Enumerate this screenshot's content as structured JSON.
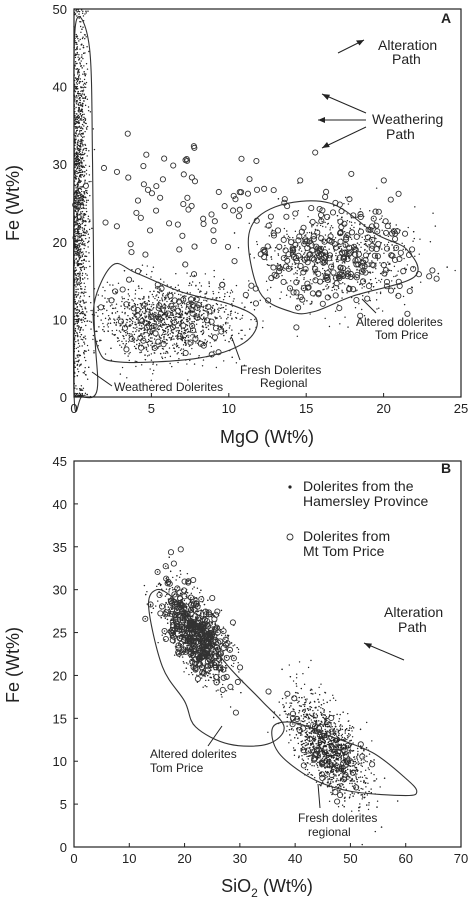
{
  "chart_data": [
    {
      "panel": "A",
      "type": "scatter",
      "xlabel": "MgO (Wt%)",
      "ylabel": "Fe (Wt%)",
      "xlim": [
        0,
        25
      ],
      "ylim": [
        0,
        50
      ],
      "xticks": [
        0,
        5,
        10,
        15,
        20,
        25
      ],
      "yticks": [
        0,
        10,
        20,
        30,
        40,
        50
      ],
      "grid": false,
      "point_series": [
        {
          "marker": "dot",
          "name": ""
        },
        {
          "marker": "open-circle",
          "name": ""
        }
      ],
      "clusters": [
        {
          "label": "Weathered Dolerites",
          "center": [
            0.3,
            25
          ],
          "spread": [
            0.3,
            12
          ]
        },
        {
          "label": "Fresh Dolerites Regional",
          "center": [
            6,
            10
          ],
          "spread": [
            2.2,
            2.5
          ]
        },
        {
          "label": "Altered dolerites Tom Price",
          "center": [
            17,
            18
          ],
          "spread": [
            2.5,
            3
          ]
        }
      ],
      "envelopes": [
        {
          "label": "Weathered Dolerites",
          "points": [
            [
              0.1,
              48
            ],
            [
              1.0,
              45
            ],
            [
              1.2,
              30
            ],
            [
              1.3,
              10
            ],
            [
              1.5,
              1
            ],
            [
              0.5,
              0
            ],
            [
              0,
              0.5
            ],
            [
              0,
              30
            ]
          ]
        },
        {
          "label": "Fresh Dolerites Regional",
          "points": [
            [
              1.3,
              12
            ],
            [
              2.5,
              17
            ],
            [
              4,
              16
            ],
            [
              7,
              13.5
            ],
            [
              10,
              12
            ],
            [
              11.8,
              10
            ],
            [
              11,
              7
            ],
            [
              8,
              5
            ],
            [
              3,
              4.5
            ],
            [
              1.6,
              6
            ]
          ]
        },
        {
          "label": "Altered dolerites Tom Price",
          "points": [
            [
              11.3,
              21
            ],
            [
              13,
              24.5
            ],
            [
              16.5,
              25
            ],
            [
              19.5,
              21
            ],
            [
              21.5,
              19
            ],
            [
              22,
              15.5
            ],
            [
              18,
              13
            ],
            [
              15.5,
              11
            ],
            [
              14,
              11
            ],
            [
              12,
              13.5
            ]
          ]
        }
      ],
      "annotations": [
        {
          "text": "A",
          "kind": "panel-letter"
        },
        {
          "text": "Alteration",
          "kind": "legend"
        },
        {
          "text": "Path",
          "kind": "legend"
        },
        {
          "text": "Weathering",
          "kind": "legend"
        },
        {
          "text": "Path",
          "kind": "legend"
        },
        {
          "text": "Weathered Dolerites",
          "kind": "label"
        },
        {
          "text": "Fresh Dolerites",
          "kind": "label"
        },
        {
          "text": "Regional",
          "kind": "label"
        },
        {
          "text": "Altered dolerites",
          "kind": "label"
        },
        {
          "text": "Tom Price",
          "kind": "label"
        }
      ]
    },
    {
      "panel": "B",
      "type": "scatter",
      "xlabel": "SiO2 (Wt%)",
      "ylabel": "Fe (Wt%)",
      "xlim": [
        0,
        70
      ],
      "ylim": [
        0,
        45
      ],
      "xticks": [
        0,
        10,
        20,
        30,
        40,
        50,
        60,
        70
      ],
      "yticks": [
        0,
        5,
        10,
        15,
        20,
        25,
        30,
        35,
        40,
        45
      ],
      "grid": false,
      "point_series": [
        {
          "marker": "dot",
          "name": "Dolerites from the Hamersley Province"
        },
        {
          "marker": "open-circle",
          "name": "Dolerites from Mt Tom Price"
        }
      ],
      "legend_placement": "top-right",
      "clusters": [
        {
          "label": "Altered dolerites Tom Price",
          "center": [
            22,
            20
          ],
          "spread": [
            3,
            4
          ]
        },
        {
          "label": "Fresh dolerites regional",
          "center": [
            46,
            10
          ],
          "spread": [
            3.5,
            2.2
          ]
        }
      ],
      "envelopes": [
        {
          "label": "Altered dolerites Tom Price",
          "points": [
            [
              13.5,
              28
            ],
            [
              15,
              30
            ],
            [
              18,
              29
            ],
            [
              22,
              26
            ],
            [
              28,
              21
            ],
            [
              34,
              17
            ],
            [
              38,
              14
            ],
            [
              35,
              12
            ],
            [
              28,
              12
            ],
            [
              22,
              14
            ],
            [
              20,
              17
            ],
            [
              16,
              21
            ]
          ]
        },
        {
          "label": "Fresh dolerites regional",
          "points": [
            [
              36,
              14
            ],
            [
              40,
              14.5
            ],
            [
              46,
              13
            ],
            [
              54,
              11
            ],
            [
              60,
              8
            ],
            [
              62,
              6.5
            ],
            [
              60,
              6
            ],
            [
              50,
              6.5
            ],
            [
              43,
              8
            ],
            [
              37,
              11
            ]
          ]
        }
      ],
      "annotations": [
        {
          "text": "B",
          "kind": "panel-letter"
        },
        {
          "text": "Alteration",
          "kind": "label"
        },
        {
          "text": "Path",
          "kind": "label"
        },
        {
          "text": "Altered dolerites",
          "kind": "label"
        },
        {
          "text": "Tom Price",
          "kind": "label"
        },
        {
          "text": "Fresh dolerites",
          "kind": "label"
        },
        {
          "text": "regional",
          "kind": "label"
        }
      ]
    }
  ],
  "text": {
    "a_letter": "A",
    "a_alteration1": "Alteration",
    "a_alteration2": "Path",
    "a_weathering1": "Weathering",
    "a_weathering2": "Path",
    "a_weathered": "Weathered Dolerites",
    "a_fresh1": "Fresh Dolerites",
    "a_fresh2": "Regional",
    "a_altered1": "Altered dolerites",
    "a_altered2": "Tom Price",
    "a_xlabel": "MgO (Wt%)",
    "a_ylabel": "Fe (Wt%)",
    "b_letter": "B",
    "b_legend1a": "Dolerites from the",
    "b_legend1b": "Hamersley Province",
    "b_legend2a": "Dolerites from",
    "b_legend2b": "Mt Tom Price",
    "b_alteration1": "Alteration",
    "b_alteration2": "Path",
    "b_altered1": "Altered dolerites",
    "b_altered2": "Tom Price",
    "b_fresh1": "Fresh dolerites",
    "b_fresh2": "regional",
    "b_xlabel_main": "SiO",
    "b_xlabel_sub": "2",
    "b_xlabel_tail": " (Wt%)",
    "b_ylabel": "Fe (Wt%)"
  }
}
